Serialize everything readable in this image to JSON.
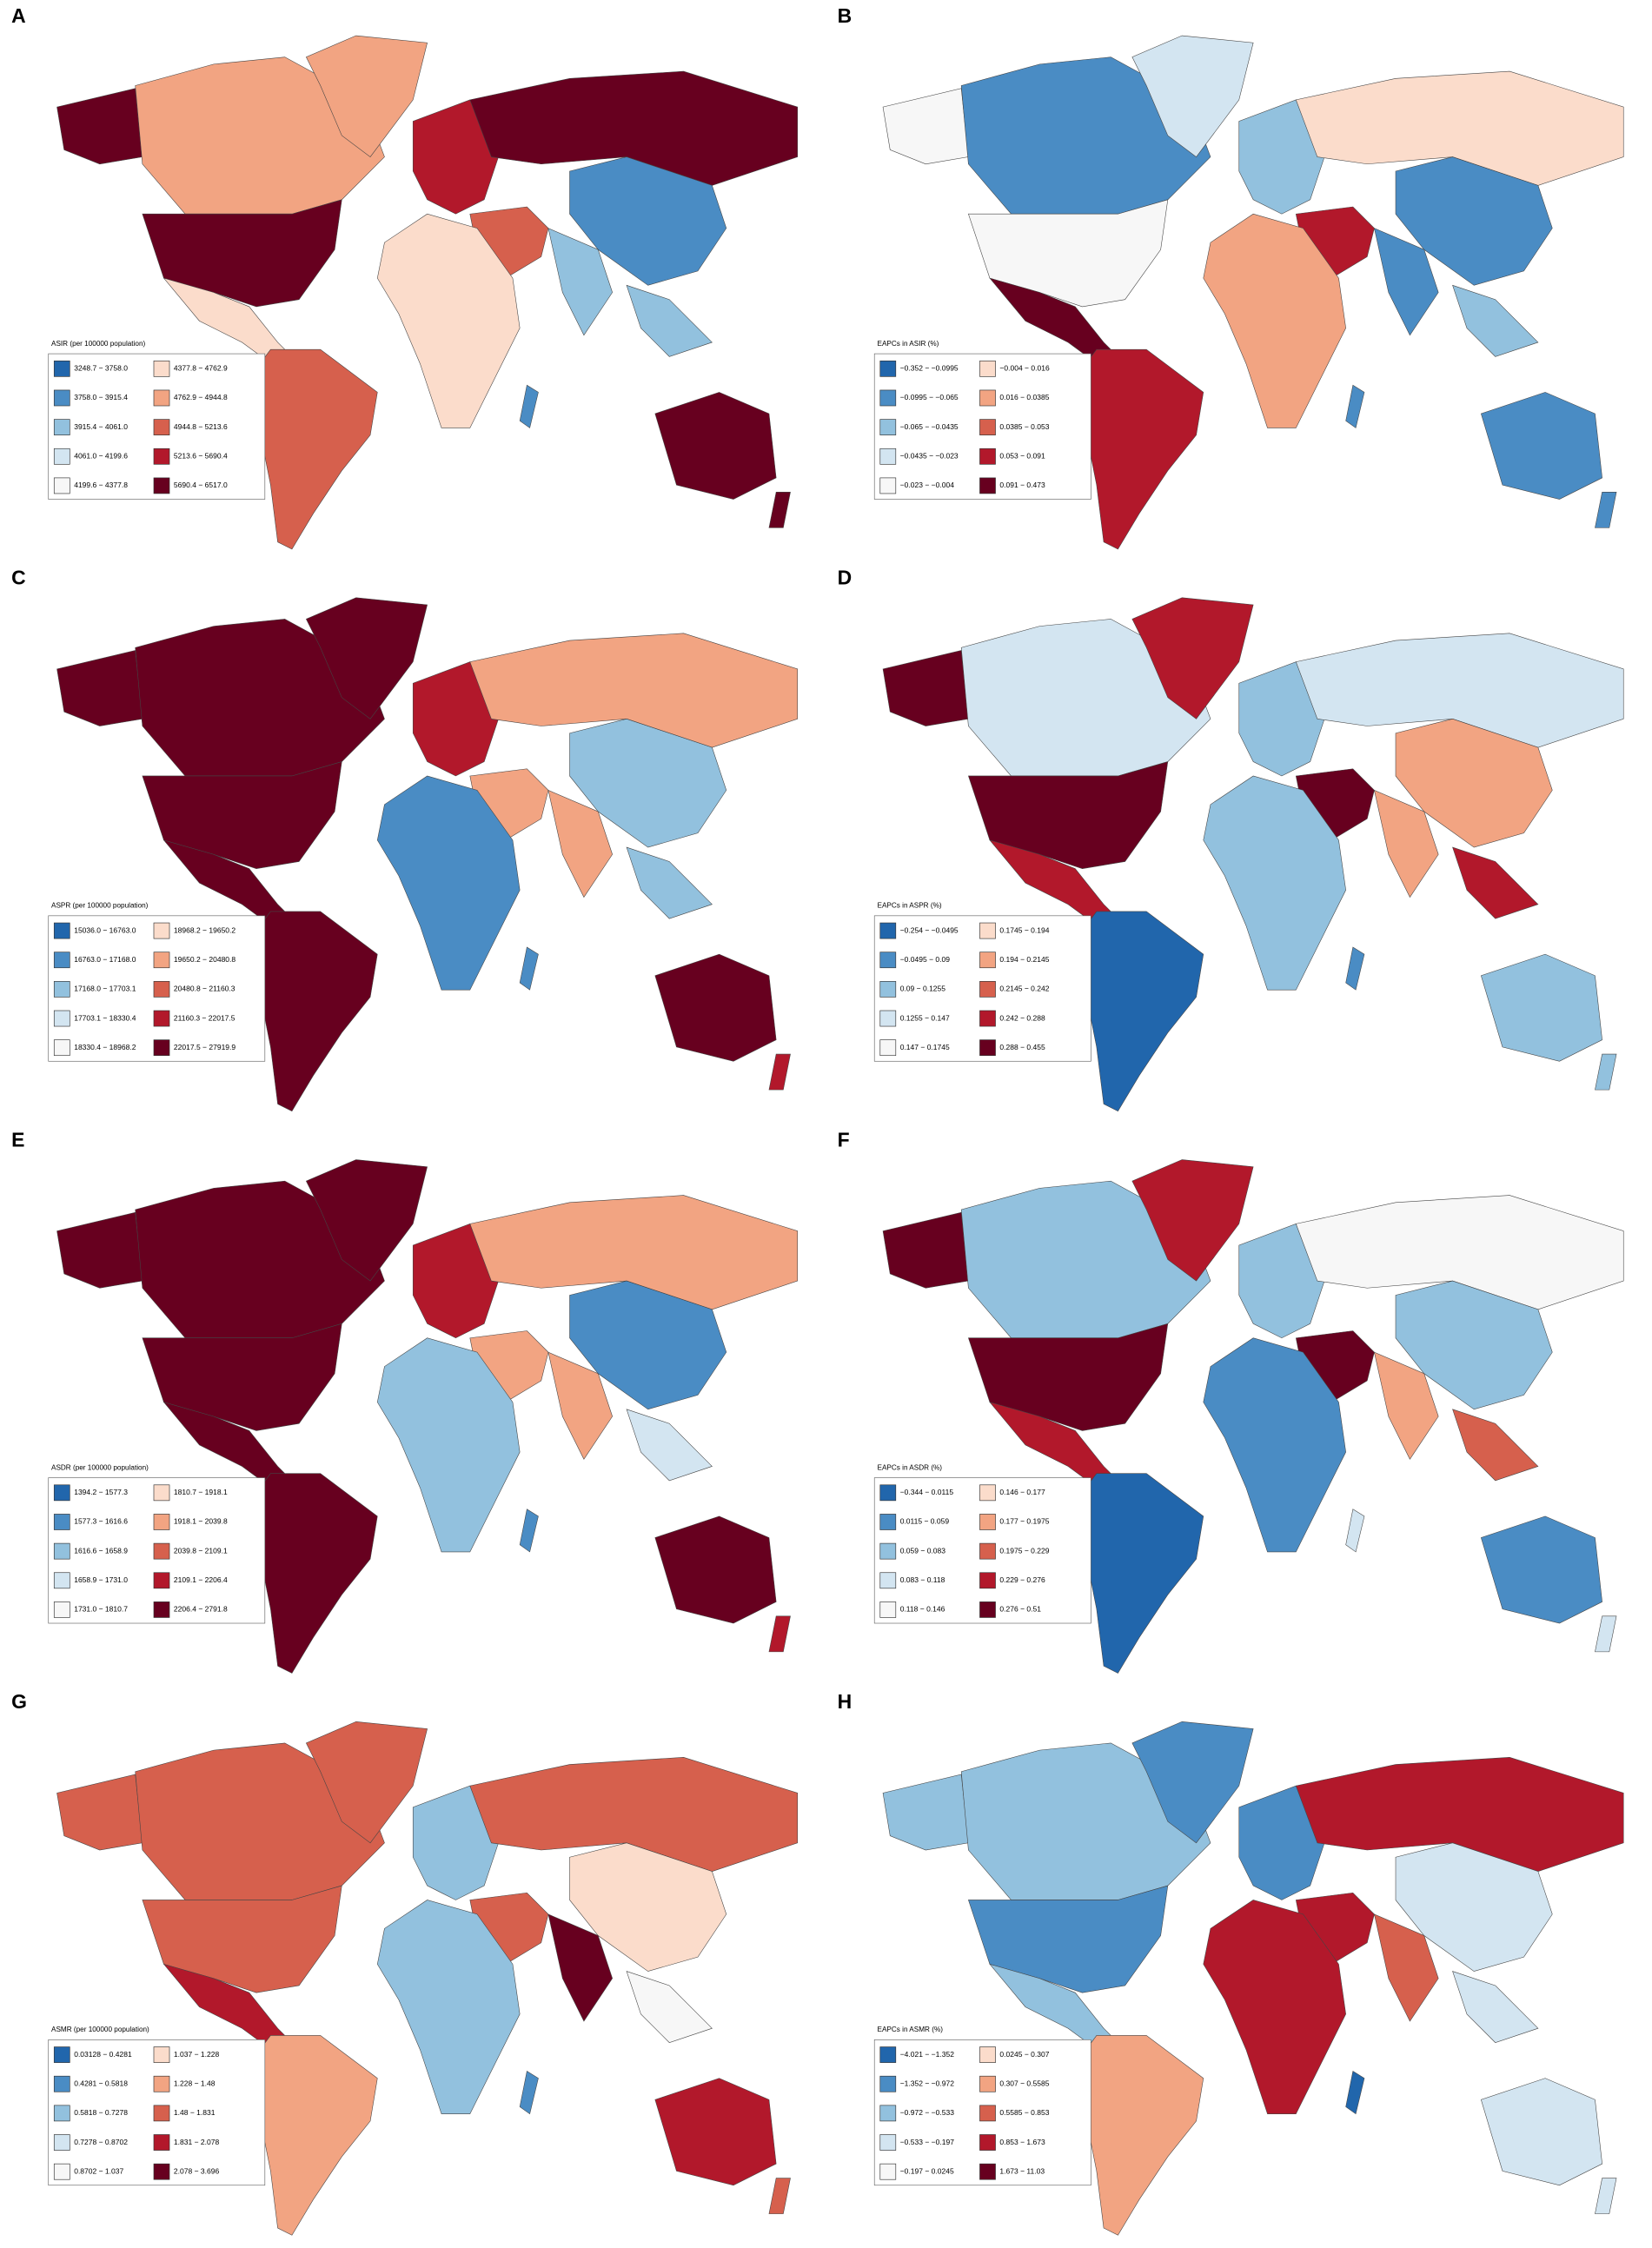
{
  "panels": [
    {
      "label": "A",
      "legend_title": "ASIR (per 100000 population)",
      "legend": [
        "3248.7 − 3758.0",
        "3758.0 − 3915.4",
        "3915.4 − 4061.0",
        "4061.0 − 4199.6",
        "4199.6 − 4377.8",
        "4377.8 − 4762.9",
        "4762.9 − 4944.8",
        "4944.8 − 5213.6",
        "5213.6 − 5690.4",
        "5690.4 − 6517.0"
      ]
    },
    {
      "label": "B",
      "legend_title": "EAPCs in ASIR (%)",
      "legend": [
        "−0.352 − −0.0995",
        "−0.0995 − −0.065",
        "−0.065 − −0.0435",
        "−0.0435 − −0.023",
        "−0.023 − −0.004",
        "−0.004 − 0.016",
        "0.016 − 0.0385",
        "0.0385 − 0.053",
        "0.053 − 0.091",
        "0.091 − 0.473"
      ]
    },
    {
      "label": "C",
      "legend_title": "ASPR (per 100000 population)",
      "legend": [
        "15036.0 − 16763.0",
        "16763.0 − 17168.0",
        "17168.0 − 17703.1",
        "17703.1 − 18330.4",
        "18330.4 − 18968.2",
        "18968.2 − 19650.2",
        "19650.2 − 20480.8",
        "20480.8 − 21160.3",
        "21160.3 − 22017.5",
        "22017.5 − 27919.9"
      ]
    },
    {
      "label": "D",
      "legend_title": "EAPCs in ASPR (%)",
      "legend": [
        "−0.254 − −0.0495",
        "−0.0495 − 0.09",
        "0.09 − 0.1255",
        "0.1255 − 0.147",
        "0.147 − 0.1745",
        "0.1745 − 0.194",
        "0.194 − 0.2145",
        "0.2145 − 0.242",
        "0.242 − 0.288",
        "0.288 − 0.455"
      ]
    },
    {
      "label": "E",
      "legend_title": "ASDR (per 100000 population)",
      "legend": [
        "1394.2 − 1577.3",
        "1577.3 − 1616.6",
        "1616.6 − 1658.9",
        "1658.9 − 1731.0",
        "1731.0 − 1810.7",
        "1810.7 − 1918.1",
        "1918.1 − 2039.8",
        "2039.8 − 2109.1",
        "2109.1 − 2206.4",
        "2206.4 − 2791.8"
      ]
    },
    {
      "label": "F",
      "legend_title": "EAPCs in ASDR (%)",
      "legend": [
        "−0.344 − 0.0115",
        "0.0115 − 0.059",
        "0.059 − 0.083",
        "0.083 − 0.118",
        "0.118 − 0.146",
        "0.146 − 0.177",
        "0.177 − 0.1975",
        "0.1975 − 0.229",
        "0.229 − 0.276",
        "0.276 − 0.51"
      ]
    },
    {
      "label": "G",
      "legend_title": "ASMR (per 100000 population)",
      "legend": [
        "0.03128 − 0.4281",
        "0.4281 − 0.5818",
        "0.5818 − 0.7278",
        "0.7278 − 0.8702",
        "0.8702 − 1.037",
        "1.037 − 1.228",
        "1.228 − 1.48",
        "1.48 − 1.831",
        "1.831 − 2.078",
        "2.078 − 3.696"
      ]
    },
    {
      "label": "H",
      "legend_title": "EAPCs in ASMR (%)",
      "legend": [
        "−4.021 − −1.352",
        "−1.352 − −0.972",
        "−0.972 − −0.533",
        "−0.533 − −0.197",
        "−0.197 − 0.0245",
        "0.0245 − 0.307",
        "0.307 − 0.5585",
        "0.5585 − 0.853",
        "0.853 − 1.673",
        "1.673 − 11.03"
      ]
    }
  ],
  "legend_colors": [
    "#2166ac",
    "#4a8cc4",
    "#92c1de",
    "#d3e5f1",
    "#f7f7f7",
    "#fbdccb",
    "#f2a482",
    "#d6604d",
    "#b2182b",
    "#67001f"
  ]
}
